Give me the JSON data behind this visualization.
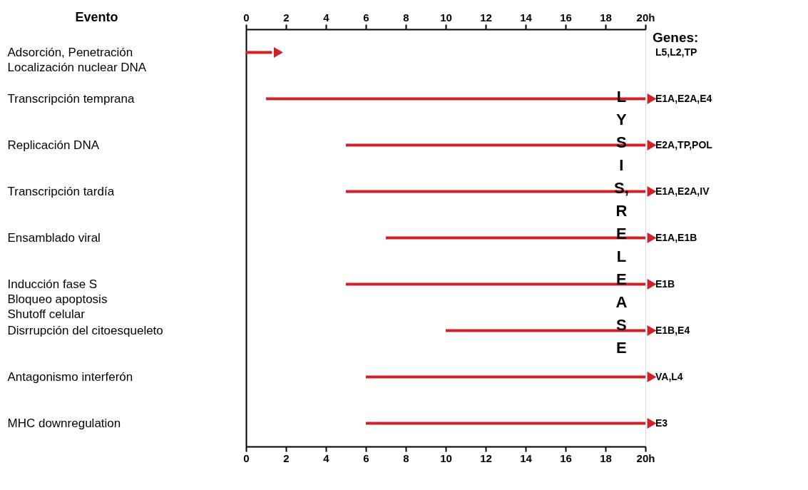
{
  "chart_data": {
    "type": "bar",
    "orientation": "horizontal",
    "ylabel": "Evento",
    "y2label": "Genes:",
    "categories": [
      "Adsorción, Penetración\nLocalización nuclear DNA",
      "Transcripción temprana",
      "Replicación DNA",
      "Transcripción tardía",
      "Ensamblado viral",
      "Inducción fase S\nBloqueo apoptosis\nShutoff celular",
      "Disrrupción del citoesqueleto",
      "Antagonismo interferón",
      "MHC downregulation"
    ],
    "base": [
      0,
      1,
      5,
      5,
      7,
      5,
      10,
      6,
      6
    ],
    "values": [
      1.3,
      19,
      15,
      15,
      13,
      15,
      10,
      14,
      14
    ],
    "color": "#d0202a",
    "xlim": [
      0,
      20
    ],
    "xticks": [
      0,
      2,
      4,
      6,
      8,
      10,
      12,
      14,
      16,
      18,
      {
        "value": 20,
        "label": "20h"
      }
    ],
    "x2lim": [
      0,
      20
    ],
    "x2ticks": [
      0,
      2,
      4,
      6,
      8,
      10,
      12,
      14,
      16,
      18,
      {
        "value": 20,
        "label": "20h"
      }
    ],
    "grid": false,
    "annotations": [
      "L5,L2,TP",
      "E1A,E2A,E4",
      "E2A,TP,POL",
      "E1A,E2A,IV",
      "E1A,E1B",
      "E1B",
      "E1B,E4",
      "VA,L4",
      "E3",
      "LYSIS, RELEASE"
    ]
  }
}
